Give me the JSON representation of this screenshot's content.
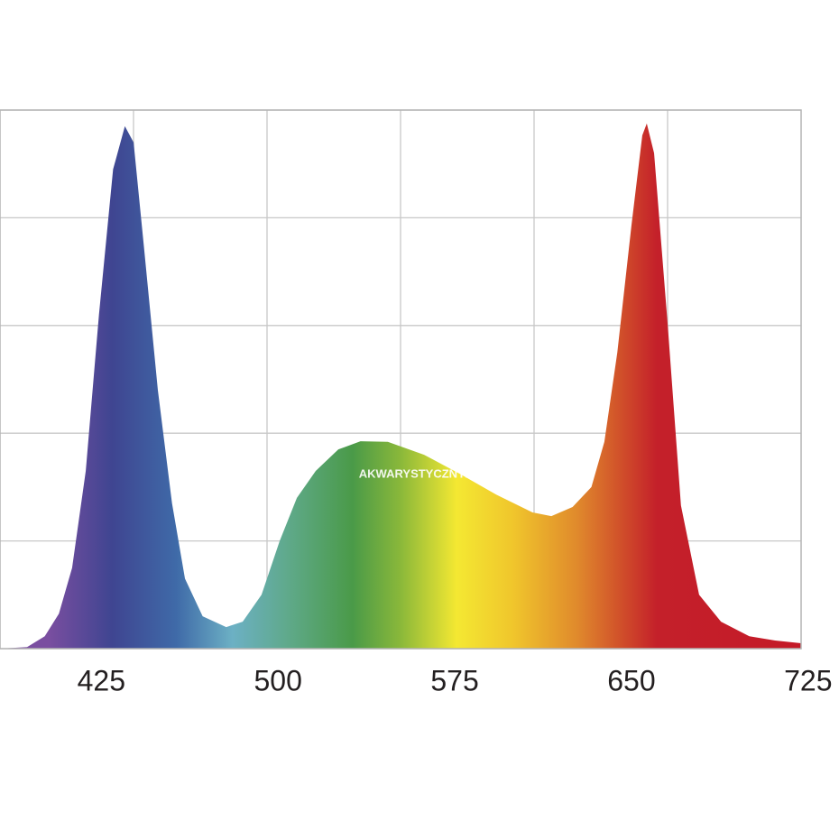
{
  "chart_data": {
    "type": "area",
    "x": [
      382,
      393.5,
      401,
      407,
      412.6,
      418.4,
      424,
      430,
      435,
      438.7,
      443,
      449,
      455,
      460.5,
      468,
      478,
      485,
      493,
      500.7,
      508,
      516,
      525.6,
      535,
      546.6,
      562,
      577,
      592.6,
      608,
      616,
      625,
      633,
      638.5,
      644,
      650,
      654.6,
      656.5,
      659.6,
      665.4,
      671,
      678.7,
      688,
      700,
      711,
      722
    ],
    "values": [
      0,
      0.3,
      2.3,
      6.5,
      15,
      33,
      62,
      89,
      97,
      94,
      75,
      48,
      27,
      13,
      6,
      4,
      5,
      10,
      20,
      28,
      33,
      37,
      38.5,
      38.4,
      36,
      32.5,
      28.6,
      25.3,
      24.6,
      26.3,
      30,
      38.4,
      55,
      78.6,
      95.3,
      97.5,
      92,
      60,
      26.6,
      10,
      5,
      2.3,
      1.5,
      1
    ],
    "xlim": [
      382,
      722
    ],
    "xticks": [
      425,
      500,
      575,
      650,
      725
    ],
    "ylim": [
      0,
      100
    ],
    "yticks": [
      0,
      20,
      40,
      60,
      80,
      100
    ],
    "grid": true,
    "watermark": "AKWARYSTYCZNY24"
  }
}
